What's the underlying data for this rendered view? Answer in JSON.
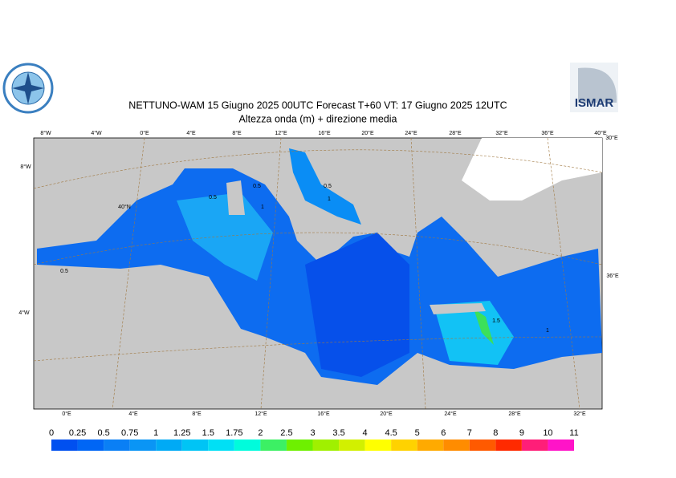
{
  "header": {
    "title": "NETTUNO-WAM  15   Giugno  2025 00UTC Forecast T+60 VT: 17   Giugno  2025 12UTC",
    "subtitle": "Altezza onda (m) + direzione media",
    "logo_right": "ISMAR"
  },
  "map": {
    "top_labels": [
      "8°W",
      "4°W",
      "0°E",
      "4°E",
      "8°E",
      "12°E",
      "16°E",
      "20°E",
      "24°E",
      "28°E",
      "32°E",
      "36°E",
      "40°E"
    ],
    "bottom_labels": [
      "0°E",
      "4°E",
      "8°E",
      "12°E",
      "16°E",
      "20°E",
      "24°E",
      "28°E",
      "32°E"
    ],
    "left_labels": [
      "8°W",
      "40°N",
      "4°W"
    ],
    "right_labels": [
      "30°E",
      "36°E"
    ],
    "contour_labels": [
      "0.5",
      "0.5",
      "1",
      "0.5",
      "0.5",
      "1",
      "1.5",
      "1"
    ]
  },
  "legend": {
    "levels": [
      0,
      0.25,
      0.5,
      0.75,
      1,
      1.25,
      1.5,
      1.75,
      2,
      2.5,
      3,
      3.5,
      4,
      4.5,
      5,
      6,
      7,
      8,
      9,
      10,
      11
    ],
    "colors": [
      "#0050f0",
      "#0066f5",
      "#0a7ff5",
      "#0a95f5",
      "#00aaf5",
      "#00c4f5",
      "#00e0f5",
      "#00fcdc",
      "#3cf064",
      "#6ef000",
      "#a0f000",
      "#d2f000",
      "#ffff00",
      "#ffd200",
      "#ffaa00",
      "#ff8c00",
      "#ff5a00",
      "#ff2a00",
      "#ff1e78",
      "#ff14c8"
    ]
  }
}
